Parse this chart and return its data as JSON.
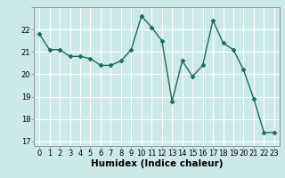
{
  "x": [
    0,
    1,
    2,
    3,
    4,
    5,
    6,
    7,
    8,
    9,
    10,
    11,
    12,
    13,
    14,
    15,
    16,
    17,
    18,
    19,
    20,
    21,
    22,
    23
  ],
  "y": [
    21.8,
    21.1,
    21.1,
    20.8,
    20.8,
    20.7,
    20.4,
    20.4,
    20.6,
    21.1,
    22.6,
    22.1,
    21.5,
    18.8,
    20.6,
    19.9,
    20.4,
    22.4,
    21.4,
    21.1,
    20.2,
    18.9,
    17.4,
    17.4
  ],
  "line_color": "#1a6b5a",
  "marker": "D",
  "marker_size": 2.5,
  "linewidth": 1.0,
  "xlabel": "Humidex (Indice chaleur)",
  "xlim": [
    -0.5,
    23.5
  ],
  "ylim": [
    16.8,
    23.0
  ],
  "yticks": [
    17,
    18,
    19,
    20,
    21,
    22
  ],
  "xticks": [
    0,
    1,
    2,
    3,
    4,
    5,
    6,
    7,
    8,
    9,
    10,
    11,
    12,
    13,
    14,
    15,
    16,
    17,
    18,
    19,
    20,
    21,
    22,
    23
  ],
  "bg_color": "#cce9e9",
  "grid_color": "#ffffff",
  "tick_fontsize": 6,
  "xlabel_fontsize": 7.5
}
